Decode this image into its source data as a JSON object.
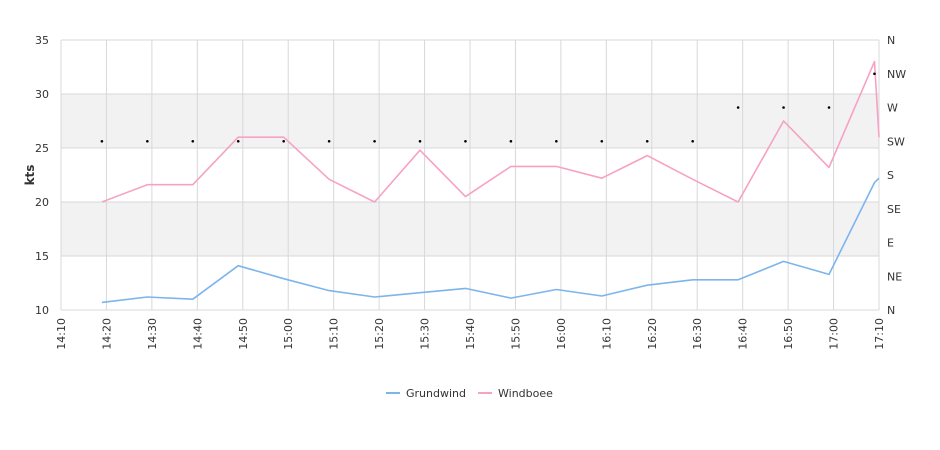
{
  "chart_data": {
    "type": "line",
    "ylabel": "kts",
    "ylim": [
      10,
      35
    ],
    "y_ticks": [
      10,
      15,
      20,
      25,
      30,
      35
    ],
    "x_ticks": [
      "14:10",
      "14:20",
      "14:30",
      "14:40",
      "14:50",
      "15:00",
      "15:10",
      "15:20",
      "15:30",
      "15:40",
      "15:50",
      "16:00",
      "16:10",
      "16:20",
      "16:30",
      "16:40",
      "16:50",
      "17:00",
      "17:10"
    ],
    "x_minutes_first": 850,
    "x_minutes_last": 1030,
    "direction_ticks": [
      "N",
      "NE",
      "E",
      "SE",
      "S",
      "SW",
      "W",
      "NW",
      "N"
    ],
    "grid": true,
    "alternate_bands": true,
    "legend_position": "bottom-center",
    "series": [
      {
        "name": "Grundwind",
        "color": "#7cb5ec",
        "x": [
          "14:19",
          "14:29",
          "14:39",
          "14:49",
          "14:59",
          "15:09",
          "15:19",
          "15:29",
          "15:39",
          "15:49",
          "15:59",
          "16:09",
          "16:19",
          "16:29",
          "16:39",
          "16:49",
          "16:59",
          "17:09",
          "17:10"
        ],
        "values": [
          10.7,
          11.2,
          11.0,
          14.1,
          12.9,
          11.8,
          11.2,
          11.6,
          12.0,
          11.1,
          11.9,
          11.3,
          12.3,
          12.8,
          12.8,
          14.5,
          13.3,
          21.8,
          22.2
        ]
      },
      {
        "name": "Windboee",
        "color": "#f7a1c4",
        "x": [
          "14:19",
          "14:29",
          "14:39",
          "14:49",
          "14:59",
          "15:09",
          "15:19",
          "15:29",
          "15:39",
          "15:49",
          "15:59",
          "16:09",
          "16:19",
          "16:29",
          "16:39",
          "16:49",
          "16:59",
          "17:09",
          "17:10"
        ],
        "values": [
          20.0,
          21.6,
          21.6,
          26.0,
          26.0,
          22.1,
          20.0,
          24.8,
          20.5,
          23.3,
          23.3,
          22.2,
          24.3,
          22.1,
          20.0,
          27.5,
          23.2,
          33.0,
          26.0
        ]
      }
    ],
    "direction": {
      "x": [
        "14:19",
        "14:29",
        "14:39",
        "14:49",
        "14:59",
        "15:09",
        "15:19",
        "15:29",
        "15:39",
        "15:49",
        "15:59",
        "16:09",
        "16:19",
        "16:29",
        "16:39",
        "16:49",
        "16:59",
        "17:09"
      ],
      "values": [
        "SW",
        "SW",
        "SW",
        "SW",
        "SW",
        "SW",
        "SW",
        "SW",
        "SW",
        "SW",
        "SW",
        "SW",
        "SW",
        "SW",
        "W",
        "W",
        "W",
        "NW"
      ]
    }
  },
  "colors": {
    "band": "#f2f2f2",
    "grid": "#d8d8d8",
    "direction_dot": "#000000"
  }
}
